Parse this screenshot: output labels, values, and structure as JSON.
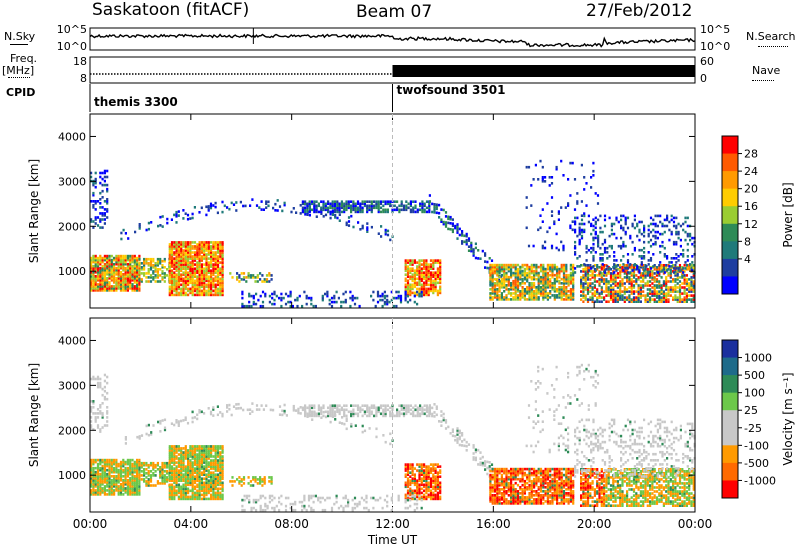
{
  "header": {
    "station": "Saskatoon (fitACF)",
    "beam": "Beam 07",
    "date": "27/Feb/2012"
  },
  "side_labels": {
    "nsky": "N.Sky",
    "freq": "Freq.",
    "freq_unit": "[MHz]",
    "cpid": "CPID",
    "nsearch": "N.Search",
    "nave": "Nave"
  },
  "chart_data": [
    {
      "type": "line",
      "name": "noise",
      "yticks_left": [
        "10^5",
        "10^0"
      ],
      "yticks_right": [
        "10^5",
        "10^0"
      ]
    },
    {
      "type": "line",
      "name": "frequency",
      "yticks_left": [
        "18",
        "8"
      ],
      "yticks_right": [
        "60",
        "0"
      ],
      "nave_switch_time": "12:00"
    },
    {
      "type": "table",
      "name": "cpid",
      "segments": [
        {
          "label": "themis 3300",
          "start": "00:00",
          "end": "12:00"
        },
        {
          "label": "twofsound 3501",
          "start": "12:00",
          "end": "24:00"
        }
      ]
    },
    {
      "type": "heatmap",
      "name": "power",
      "ylabel": "Slant Range [km]",
      "xlabel": "Time UT",
      "yticks": [
        "4000",
        "3000",
        "2000",
        "1000"
      ],
      "ylim": [
        180,
        4500
      ],
      "xticks": [
        "00:00",
        "04:00",
        "08:00",
        "12:00",
        "16:00",
        "20:00",
        "00:00"
      ],
      "colorbar_label": "Power [dB]",
      "colorbar_ticks": [
        "28",
        "24",
        "20",
        "16",
        "12",
        "8",
        "4"
      ],
      "colorbar_colors": [
        "#ff0000",
        "#ff5a00",
        "#ff9a00",
        "#ffcc00",
        "#9acd32",
        "#2e8b57",
        "#1f7a7a",
        "#1e3ea0",
        "#0000ff"
      ]
    },
    {
      "type": "heatmap",
      "name": "velocity",
      "ylabel": "Slant Range [km]",
      "xlabel": "Time UT",
      "yticks": [
        "4000",
        "3000",
        "2000",
        "1000"
      ],
      "ylim": [
        180,
        4500
      ],
      "xticks": [
        "00:00",
        "04:00",
        "08:00",
        "12:00",
        "16:00",
        "20:00",
        "00:00"
      ],
      "colorbar_label": "Velocity [m s⁻¹]",
      "colorbar_ticks": [
        "1000",
        "500",
        "100",
        "25",
        "-25",
        "-100",
        "-500",
        "-1000"
      ],
      "colorbar_colors": [
        "#1a2f9e",
        "#1e6b8a",
        "#2e8b57",
        "#6cc84a",
        "#c8c8c8",
        "#c8c8c8",
        "#ff9a00",
        "#ff6a00",
        "#ff0000"
      ]
    }
  ]
}
